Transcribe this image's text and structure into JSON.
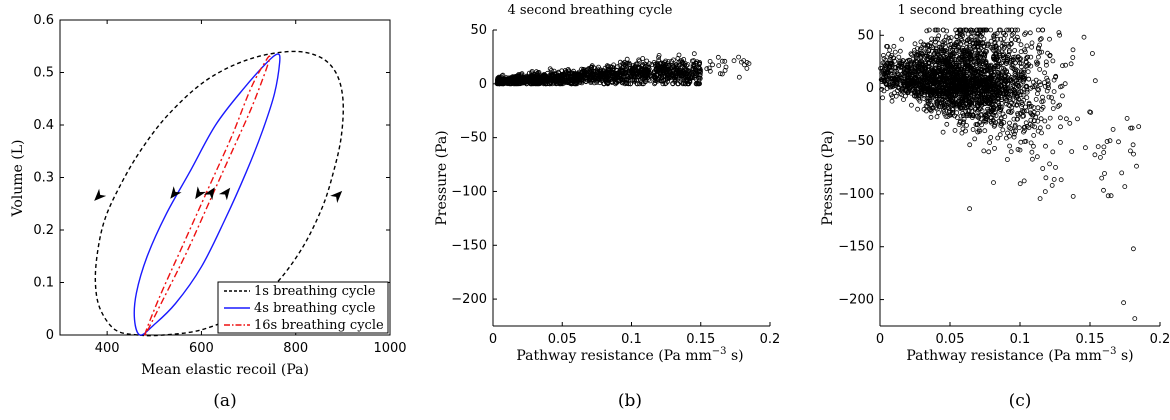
{
  "chart_data": [
    {
      "type": "line",
      "caption": "(a)",
      "title": "",
      "xlabel": "Mean elastic recoil (Pa)",
      "ylabel": "Volume (L)",
      "xlim": [
        300,
        1000
      ],
      "ylim": [
        0,
        0.6
      ],
      "xticks": [
        "400",
        "600",
        "800",
        "1000"
      ],
      "yticks": [
        "0",
        "0.1",
        "0.2",
        "0.3",
        "0.4",
        "0.5",
        "0.6"
      ],
      "legend_position": "bottom-right",
      "series": [
        {
          "name": "1s breathing cycle",
          "color": "#000000",
          "style": "dashed",
          "points": [
            [
              465,
              0.0
            ],
            [
              417,
              0.01
            ],
            [
              385,
              0.05
            ],
            [
              375,
              0.1
            ],
            [
              380,
              0.16
            ],
            [
              395,
              0.22
            ],
            [
              425,
              0.28
            ],
            [
              470,
              0.35
            ],
            [
              530,
              0.42
            ],
            [
              610,
              0.485
            ],
            [
              700,
              0.525
            ],
            [
              790,
              0.54
            ],
            [
              850,
              0.53
            ],
            [
              885,
              0.5
            ],
            [
              900,
              0.45
            ],
            [
              897,
              0.38
            ],
            [
              880,
              0.31
            ],
            [
              855,
              0.24
            ],
            [
              810,
              0.16
            ],
            [
              750,
              0.09
            ],
            [
              680,
              0.04
            ],
            [
              600,
              0.01
            ],
            [
              520,
              0.0
            ],
            [
              465,
              0.0
            ]
          ]
        },
        {
          "name": "4s breathing cycle",
          "color": "#1a1aff",
          "style": "solid",
          "points": [
            [
              470,
              0.0
            ],
            [
              458,
              0.03
            ],
            [
              462,
              0.08
            ],
            [
              485,
              0.15
            ],
            [
              525,
              0.23
            ],
            [
              575,
              0.31
            ],
            [
              630,
              0.4
            ],
            [
              690,
              0.47
            ],
            [
              740,
              0.52
            ],
            [
              762,
              0.535
            ],
            [
              766,
              0.52
            ],
            [
              755,
              0.46
            ],
            [
              730,
              0.39
            ],
            [
              695,
              0.31
            ],
            [
              650,
              0.22
            ],
            [
              600,
              0.13
            ],
            [
              545,
              0.06
            ],
            [
              500,
              0.02
            ],
            [
              470,
              0.0
            ]
          ]
        },
        {
          "name": "16s breathing cycle",
          "color": "#ee1111",
          "style": "dashdot",
          "points": [
            [
              480,
              0.0
            ],
            [
              510,
              0.07
            ],
            [
              560,
              0.17
            ],
            [
              615,
              0.28
            ],
            [
              665,
              0.38
            ],
            [
              705,
              0.47
            ],
            [
              735,
              0.52
            ],
            [
              745,
              0.53
            ],
            [
              735,
              0.5
            ],
            [
              705,
              0.43
            ],
            [
              665,
              0.35
            ],
            [
              620,
              0.26
            ],
            [
              570,
              0.16
            ],
            [
              520,
              0.07
            ],
            [
              480,
              0.0
            ]
          ]
        }
      ],
      "arrows": [
        {
          "series": "1s breathing cycle",
          "at": [
            383,
            0.265
          ],
          "direction": [
            -1,
            -1
          ]
        },
        {
          "series": "1s breathing cycle",
          "at": [
            888,
            0.265
          ],
          "direction": [
            1,
            1
          ]
        },
        {
          "series": "4s breathing cycle",
          "at": [
            543,
            0.27
          ],
          "direction": [
            -1,
            -1.3
          ]
        },
        {
          "series": "4s breathing cycle",
          "at": [
            652,
            0.27
          ],
          "direction": [
            1,
            1.3
          ]
        },
        {
          "series": "16s breathing cycle",
          "at": [
            595,
            0.27
          ],
          "direction": [
            -1,
            -1.5
          ]
        },
        {
          "series": "16s breathing cycle",
          "at": [
            620,
            0.27
          ],
          "direction": [
            1,
            1.5
          ]
        }
      ]
    },
    {
      "type": "scatter",
      "caption": "(b)",
      "title": "4 second breathing cycle",
      "xlabel": "Pathway resistance (Pa mm",
      "xlabel_sup": "−3",
      "xlabel_end": " s)",
      "ylabel": "Pressure (Pa)",
      "xlim": [
        0,
        0.2
      ],
      "ylim": [
        -225,
        50
      ],
      "xticks": [
        "0",
        "0.05",
        "0.1",
        "0.15",
        "0.2"
      ],
      "yticks": [
        "50",
        "0",
        "−50",
        "−100",
        "−150",
        "−200"
      ],
      "marker": "open-circle",
      "x_range": [
        0.003,
        0.185
      ],
      "y_range": [
        0,
        28
      ],
      "n_points": 1500
    },
    {
      "type": "scatter",
      "caption": "(c)",
      "title": "1 second breathing cycle",
      "xlabel": "Pathway resistance (Pa mm",
      "xlabel_sup": "−3",
      "xlabel_end": " s)",
      "ylabel": "Pressure (Pa)",
      "xlim": [
        0,
        0.2
      ],
      "ylim": [
        -225,
        55
      ],
      "xticks": [
        "0",
        "0.05",
        "0.1",
        "0.15",
        "0.2"
      ],
      "yticks": [
        "50",
        "0",
        "−50",
        "−100",
        "−150",
        "−200"
      ],
      "marker": "open-circle",
      "x_range": [
        0.0,
        0.185
      ],
      "y_range": [
        -218,
        55
      ],
      "n_points": 2500
    }
  ]
}
